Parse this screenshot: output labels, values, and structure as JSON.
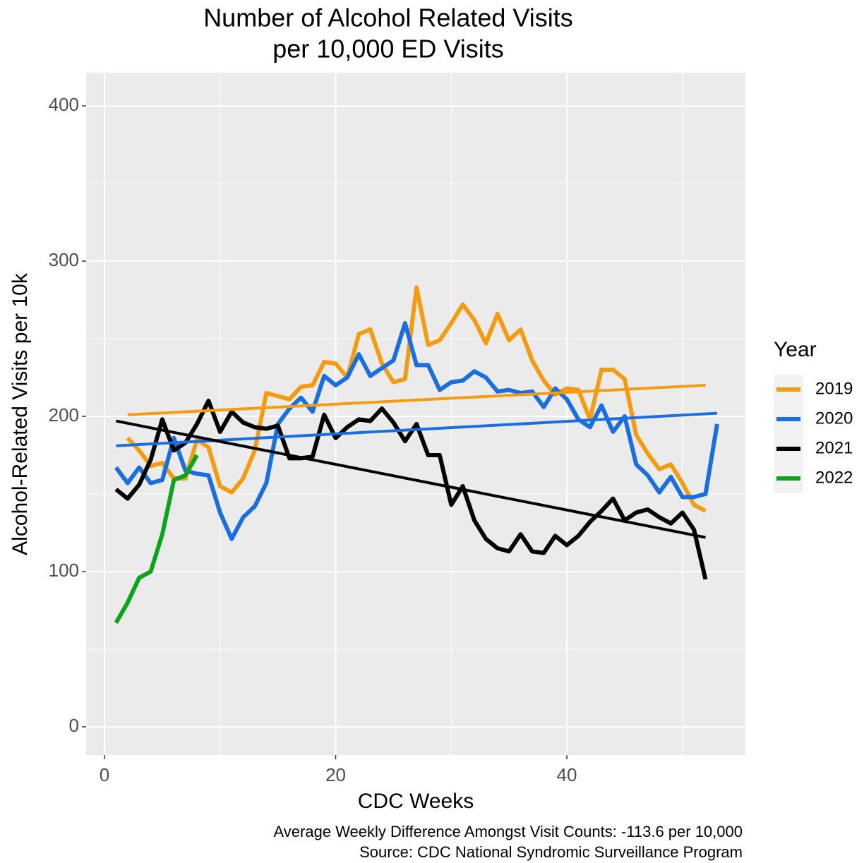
{
  "chart_data": {
    "type": "line",
    "title": [
      "Number of Alcohol Related Visits",
      "per 10,000 ED Visits"
    ],
    "x_label": "CDC Weeks",
    "y_label": "Alcohol-Related Visits per 10k",
    "caption": [
      "Average Weekly Difference Amongst Visit Counts: -113.6 per 10,000",
      "Source: CDC National Syndromic Surveillance Program"
    ],
    "legend_title": "Year",
    "legend_position": "right",
    "grid": true,
    "xlim": [
      -1.59,
      55.45
    ],
    "ylim": [
      -18.2,
      421.4
    ],
    "xticks": [
      0,
      20,
      40
    ],
    "yticks": [
      0,
      100,
      200,
      300,
      400
    ],
    "series": [
      {
        "name": "2019",
        "color": "#f39c12",
        "x": [
          2,
          3,
          4,
          5,
          6,
          7,
          8,
          9,
          10,
          11,
          12,
          13,
          14,
          15,
          16,
          17,
          18,
          19,
          20,
          21,
          22,
          23,
          24,
          25,
          26,
          27,
          28,
          29,
          30,
          31,
          32,
          33,
          34,
          35,
          36,
          37,
          38,
          39,
          40,
          41,
          42,
          43,
          44,
          45,
          46,
          47,
          48,
          49,
          50,
          51,
          52
        ],
        "values": [
          186,
          178,
          168,
          170,
          160,
          160,
          185,
          180,
          155,
          151,
          160,
          178,
          215,
          213,
          211,
          219,
          220,
          235,
          234,
          225,
          253,
          256,
          234,
          222,
          224,
          283,
          246,
          249,
          260,
          272,
          262,
          247,
          266,
          249,
          256,
          236,
          223,
          214,
          218,
          217,
          198,
          230,
          230,
          224,
          188,
          176,
          166,
          169,
          157,
          143,
          139
        ],
        "trend_x": [
          2,
          52
        ],
        "trend_values": [
          201,
          220
        ]
      },
      {
        "name": "2020",
        "color": "#1a6fe0",
        "x": [
          1,
          2,
          3,
          4,
          5,
          6,
          7,
          8,
          9,
          10,
          11,
          12,
          13,
          14,
          15,
          16,
          17,
          18,
          19,
          20,
          21,
          22,
          23,
          24,
          25,
          26,
          27,
          28,
          29,
          30,
          31,
          32,
          33,
          34,
          35,
          36,
          37,
          38,
          39,
          40,
          41,
          42,
          43,
          44,
          45,
          46,
          47,
          48,
          49,
          50,
          51,
          52,
          53
        ],
        "values": [
          167,
          157,
          167,
          157,
          159,
          186,
          165,
          163,
          162,
          138,
          121,
          135,
          142,
          157,
          195,
          205,
          212,
          203,
          226,
          220,
          225,
          240,
          226,
          231,
          236,
          260,
          233,
          233,
          217,
          222,
          223,
          229,
          225,
          216,
          217,
          215,
          216,
          206,
          218,
          211,
          198,
          193,
          207,
          190,
          200,
          169,
          162,
          151,
          161,
          148,
          148,
          150,
          195
        ],
        "trend_x": [
          1,
          53
        ],
        "trend_values": [
          181,
          202
        ]
      },
      {
        "name": "2021",
        "color": "#000000",
        "x": [
          1,
          2,
          3,
          4,
          5,
          6,
          7,
          8,
          9,
          10,
          11,
          12,
          13,
          14,
          15,
          16,
          17,
          18,
          19,
          20,
          21,
          22,
          23,
          24,
          25,
          26,
          27,
          28,
          29,
          30,
          31,
          32,
          33,
          34,
          35,
          36,
          37,
          38,
          39,
          40,
          41,
          42,
          43,
          44,
          45,
          46,
          47,
          48,
          49,
          50,
          51,
          52
        ],
        "values": [
          153,
          147,
          156,
          172,
          198,
          178,
          183,
          195,
          210,
          190,
          203,
          196,
          193,
          192,
          194,
          173,
          173,
          174,
          201,
          186,
          193,
          198,
          197,
          205,
          196,
          184,
          195,
          175,
          175,
          143,
          155,
          133,
          121,
          115,
          113,
          124,
          113,
          112,
          123,
          117,
          123,
          132,
          139,
          147,
          133,
          138,
          140,
          135,
          131,
          138,
          127,
          95
        ],
        "trend_x": [
          1,
          52
        ],
        "trend_values": [
          197,
          122
        ]
      },
      {
        "name": "2022",
        "color": "#0aa51a",
        "x": [
          1,
          2,
          3,
          4,
          5,
          6,
          7,
          8
        ],
        "values": [
          67,
          80,
          96,
          100,
          124,
          159,
          162,
          175
        ]
      }
    ]
  }
}
